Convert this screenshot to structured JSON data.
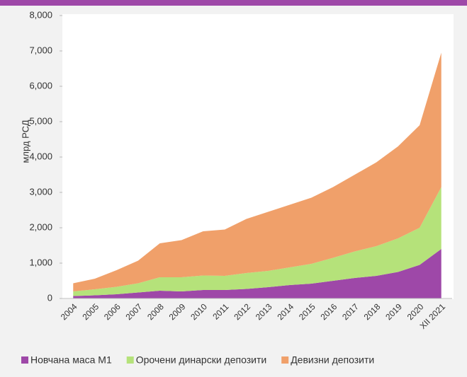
{
  "chart_data": {
    "type": "stacked_area",
    "ylabel": "млрд РСД",
    "categories": [
      "2004",
      "2005",
      "2006",
      "2007",
      "2008",
      "2009",
      "2010",
      "2011",
      "2012",
      "2013",
      "2014",
      "2015",
      "2016",
      "2017",
      "2018",
      "2019",
      "2020",
      "XII 2021"
    ],
    "series": [
      {
        "name": "Новчана маса М1",
        "color": "#9e48a8",
        "values": [
          70,
          90,
          120,
          170,
          220,
          200,
          240,
          240,
          270,
          320,
          380,
          420,
          500,
          580,
          640,
          750,
          950,
          1400
        ]
      },
      {
        "name": "Орочени динарски депозити",
        "color": "#b5e27a",
        "values": [
          130,
          170,
          210,
          260,
          380,
          400,
          410,
          400,
          450,
          460,
          500,
          560,
          650,
          750,
          840,
          950,
          1050,
          1750
        ]
      },
      {
        "name": "Девизни депозити",
        "color": "#f0a06a",
        "values": [
          230,
          300,
          470,
          640,
          960,
          1050,
          1250,
          1310,
          1530,
          1670,
          1770,
          1870,
          2000,
          2170,
          2370,
          2600,
          2900,
          3800
        ]
      }
    ],
    "ylim": [
      0,
      8000
    ],
    "yticks": [
      0,
      {
        "value": 1000,
        "label": "1,000"
      },
      {
        "value": 2000,
        "label": "2,000"
      },
      {
        "value": 3000,
        "label": "3,000"
      },
      {
        "value": 4000,
        "label": "4,000"
      },
      {
        "value": 5000,
        "label": "5,000"
      },
      {
        "value": 6000,
        "label": "6,000"
      },
      {
        "value": 7000,
        "label": "7,000"
      },
      {
        "value": 8000,
        "label": "8,000"
      }
    ],
    "legend": "bottom"
  }
}
